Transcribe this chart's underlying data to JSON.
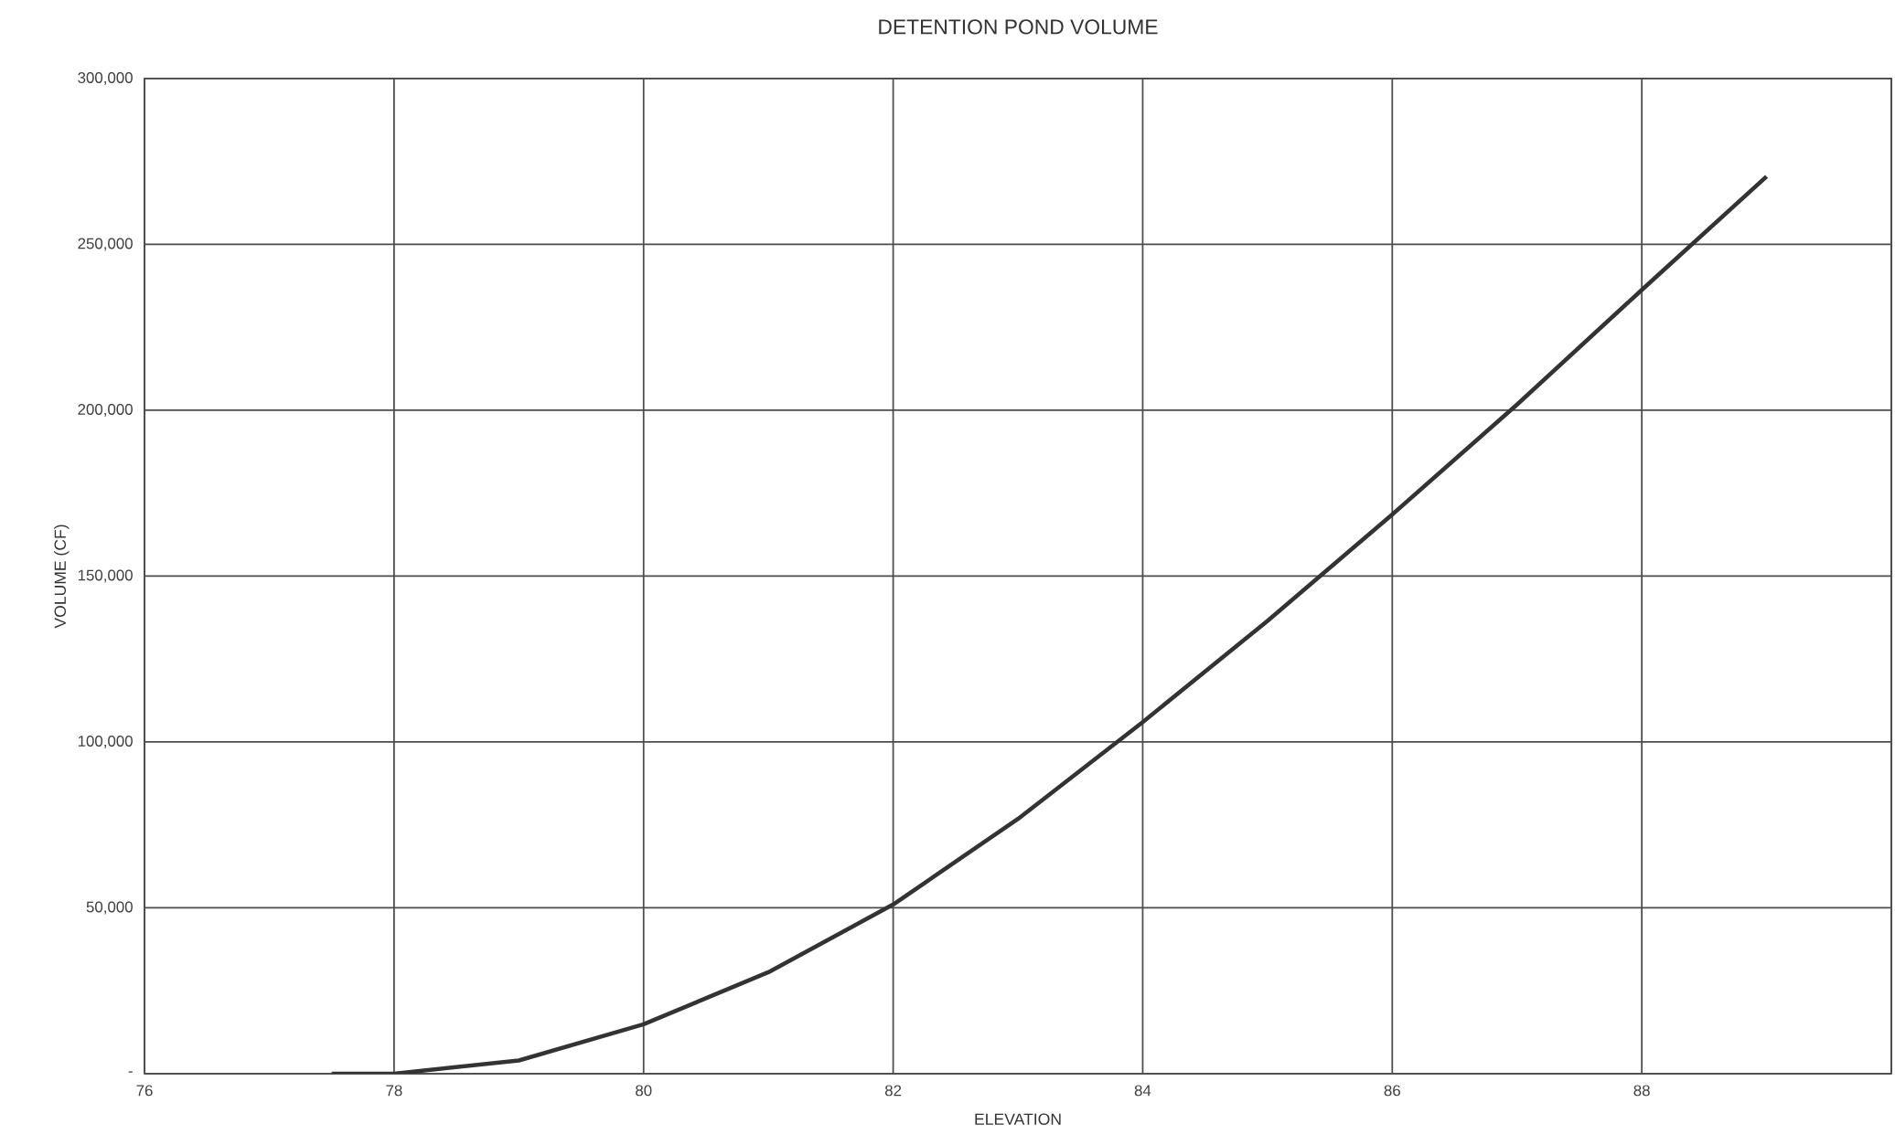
{
  "chart_data": {
    "type": "line",
    "title": "DETENTION POND VOLUME",
    "xlabel": "ELEVATION",
    "ylabel": "VOLUME (CF)",
    "x": [
      77.5,
      78,
      79,
      80,
      81,
      82,
      83,
      84,
      85,
      86,
      87,
      88,
      89
    ],
    "series": [
      {
        "color": "#333333",
        "values": [
          0,
          0,
          4000,
          14900,
          30600,
          51000,
          76800,
          106000,
          136500,
          168600,
          201700,
          236300,
          270500
        ]
      }
    ],
    "xlim": [
      76,
      90
    ],
    "ylim": [
      0,
      300000
    ],
    "xticks": [
      76,
      78,
      80,
      82,
      84,
      86,
      88,
      {
        "value": 90,
        "label": null
      }
    ],
    "yticks": [
      {
        "value": 0,
        "label": "-"
      },
      {
        "value": 50000,
        "label": "50,000"
      },
      {
        "value": 100000,
        "label": "100,000"
      },
      {
        "value": 150000,
        "label": "150,000"
      },
      {
        "value": 200000,
        "label": "200,000"
      },
      {
        "value": 250000,
        "label": "250,000"
      },
      {
        "value": 300000,
        "label": "300,000"
      }
    ],
    "grid": true,
    "marker": "none",
    "line_style": "solid"
  }
}
